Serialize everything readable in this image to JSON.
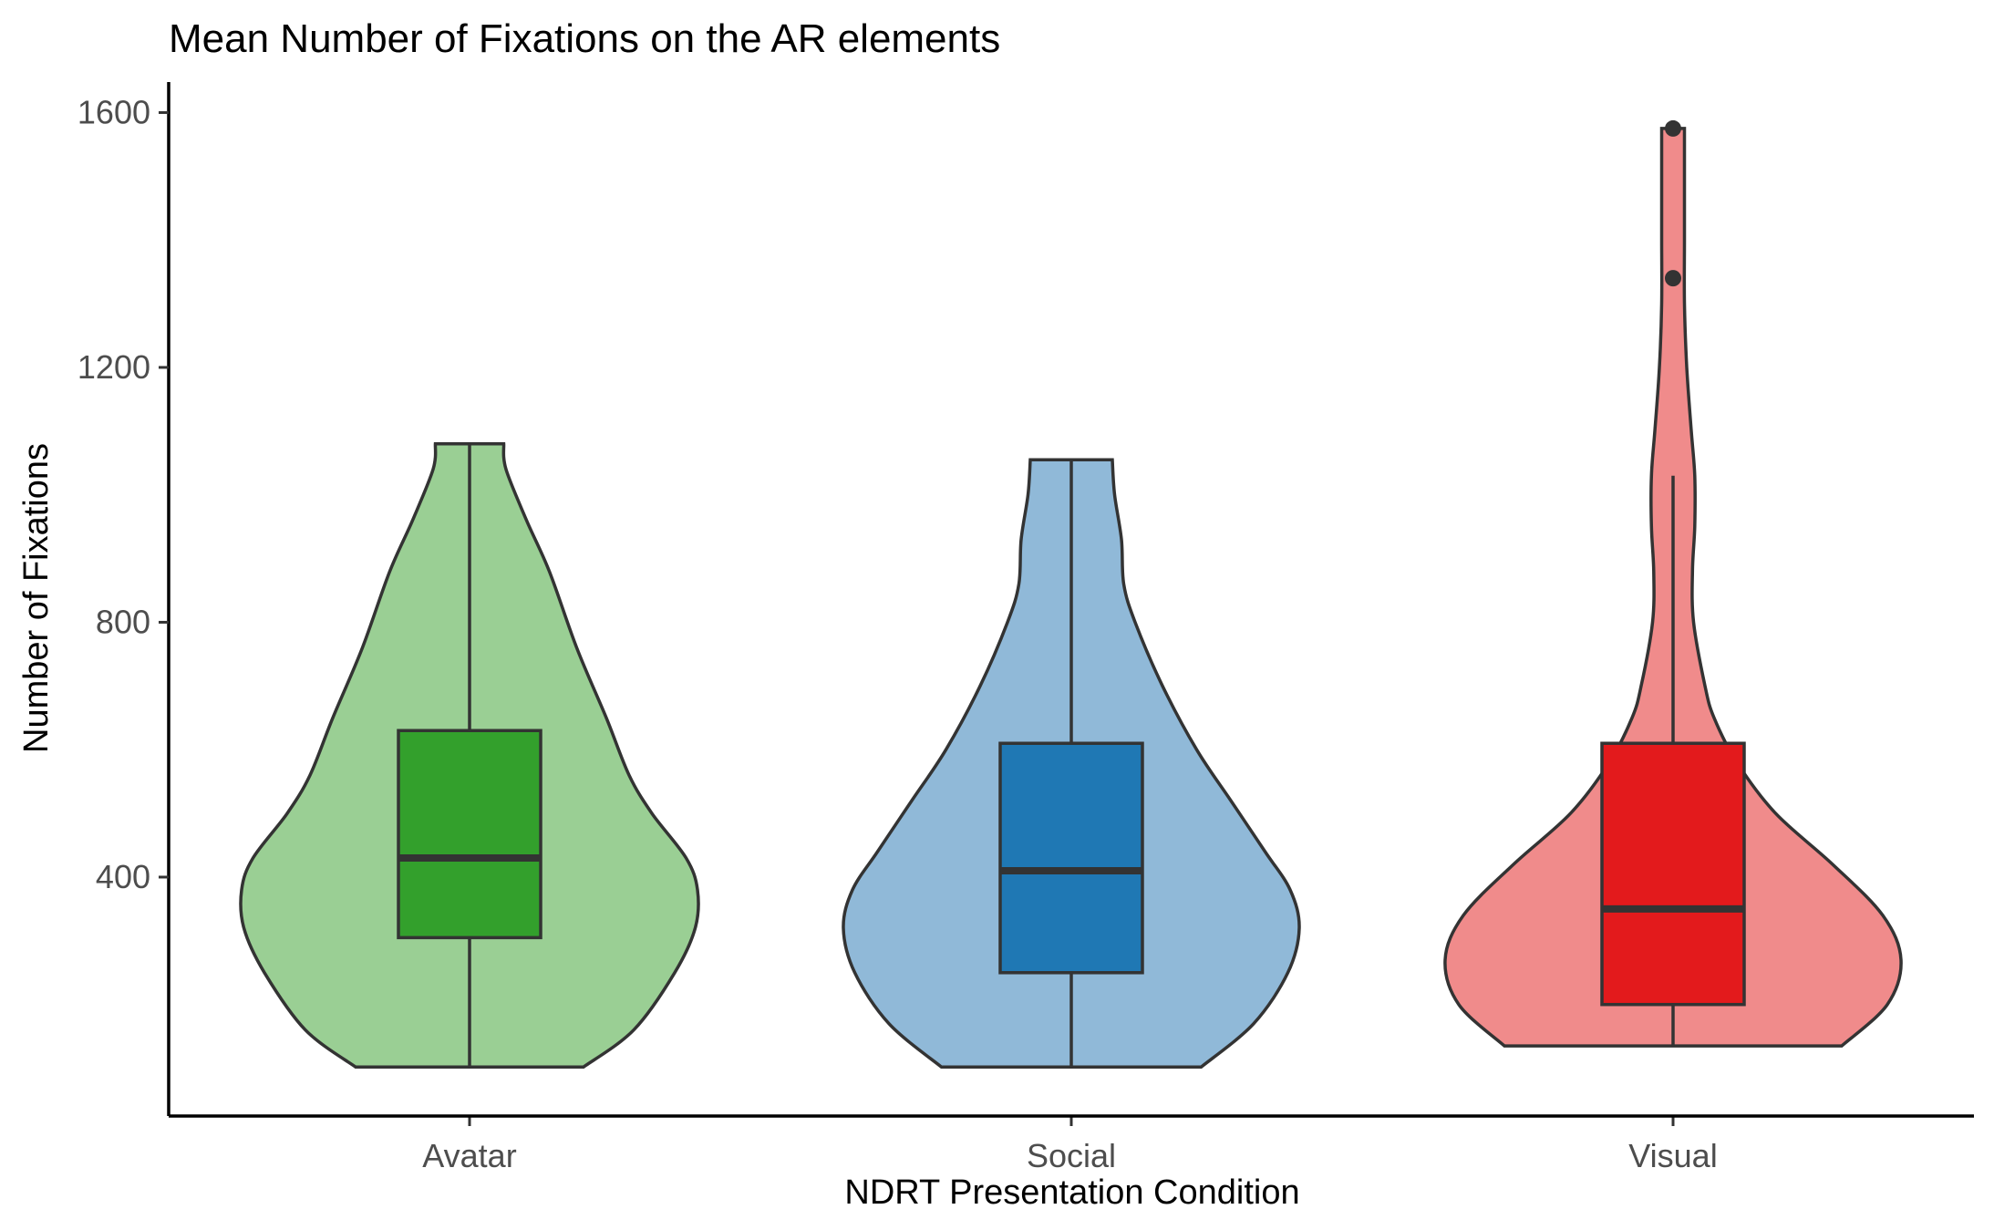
{
  "chart_data": {
    "type": "violin",
    "title": "Mean Number of Fixations on the AR elements",
    "xlabel": "NDRT Presentation Condition",
    "ylabel": "Number of Fixations",
    "ylim": [
      25,
      1645
    ],
    "yticks": [
      400,
      800,
      1200,
      1600
    ],
    "grid": false,
    "legend": "none",
    "categories": [
      "Avatar",
      "Social",
      "Visual"
    ],
    "series": [
      {
        "category": "Avatar",
        "violin_fill": "#9acf94",
        "box_fill": "#33a02c",
        "min": 102,
        "q1": 305,
        "median": 430,
        "q3": 630,
        "max": 1080,
        "outliers": [],
        "density": [
          [
            102,
            0.5
          ],
          [
            160,
            0.72
          ],
          [
            250,
            0.9
          ],
          [
            320,
            0.99
          ],
          [
            380,
            1.0
          ],
          [
            430,
            0.95
          ],
          [
            500,
            0.8
          ],
          [
            560,
            0.7
          ],
          [
            650,
            0.6
          ],
          [
            760,
            0.47
          ],
          [
            880,
            0.35
          ],
          [
            960,
            0.25
          ],
          [
            1040,
            0.16
          ],
          [
            1080,
            0.15
          ]
        ]
      },
      {
        "category": "Social",
        "violin_fill": "#90b9d8",
        "box_fill": "#1f78b4",
        "min": 102,
        "q1": 250,
        "median": 410,
        "q3": 610,
        "max": 1055,
        "outliers": [],
        "density": [
          [
            102,
            0.57
          ],
          [
            170,
            0.8
          ],
          [
            250,
            0.95
          ],
          [
            320,
            1.0
          ],
          [
            380,
            0.96
          ],
          [
            440,
            0.85
          ],
          [
            520,
            0.7
          ],
          [
            600,
            0.55
          ],
          [
            700,
            0.4
          ],
          [
            800,
            0.28
          ],
          [
            860,
            0.23
          ],
          [
            930,
            0.22
          ],
          [
            1000,
            0.19
          ],
          [
            1055,
            0.18
          ]
        ]
      },
      {
        "category": "Visual",
        "violin_fill": "#f08b8b",
        "box_fill": "#e31a1c",
        "min": 135,
        "q1": 200,
        "median": 350,
        "q3": 610,
        "max": 1030,
        "outliers": [
          1340,
          1575
        ],
        "density": [
          [
            135,
            0.74
          ],
          [
            200,
            0.94
          ],
          [
            270,
            1.0
          ],
          [
            340,
            0.92
          ],
          [
            420,
            0.7
          ],
          [
            500,
            0.45
          ],
          [
            580,
            0.28
          ],
          [
            650,
            0.18
          ],
          [
            700,
            0.14
          ],
          [
            800,
            0.09
          ],
          [
            880,
            0.085
          ],
          [
            950,
            0.095
          ],
          [
            1030,
            0.095
          ],
          [
            1100,
            0.08
          ],
          [
            1200,
            0.06
          ],
          [
            1300,
            0.05
          ],
          [
            1400,
            0.05
          ],
          [
            1500,
            0.05
          ],
          [
            1575,
            0.05
          ]
        ]
      }
    ]
  }
}
